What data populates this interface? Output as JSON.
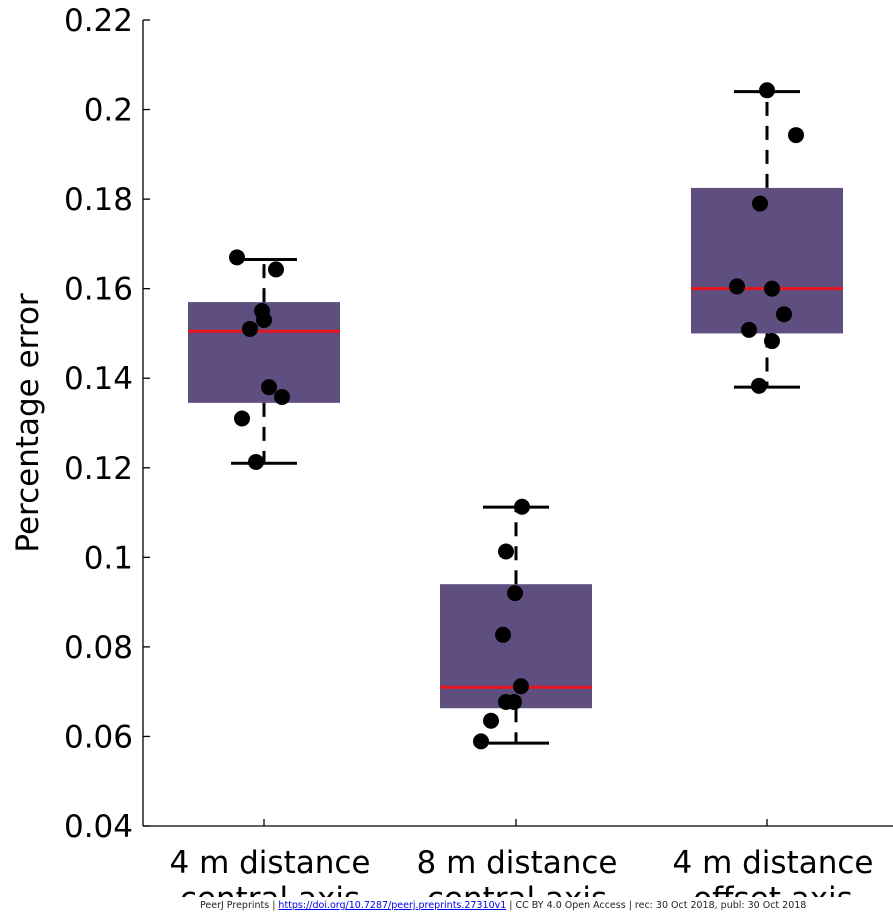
{
  "chart_data": {
    "type": "box",
    "ylabel": "Percentage error",
    "xlabel": "",
    "ylim": [
      0.04,
      0.22
    ],
    "yticks": [
      0.04,
      0.06,
      0.08,
      0.1,
      0.12,
      0.14,
      0.16,
      0.18,
      0.2,
      0.22
    ],
    "ytick_labels": [
      "0.04",
      "0.06",
      "0.08",
      "0.1",
      "0.12",
      "0.14",
      "0.16",
      "0.18",
      "0.2",
      "0.22"
    ],
    "grid": false,
    "colors": {
      "box_fill": "#5f4f80",
      "median": "#e8141c",
      "points": "#000000",
      "whisker": "#000000"
    },
    "groups": [
      {
        "label_lines": [
          "4 m distance",
          "central axis"
        ],
        "whisker_low": 0.121,
        "q1": 0.1345,
        "median": 0.1505,
        "q3": 0.157,
        "whisker_high": 0.1665,
        "points": [
          0.167,
          0.1643,
          0.155,
          0.153,
          0.151,
          0.138,
          0.1358,
          0.131,
          0.1213
        ]
      },
      {
        "label_lines": [
          "8 m distance",
          "central axis"
        ],
        "whisker_low": 0.0585,
        "q1": 0.0663,
        "median": 0.071,
        "q3": 0.094,
        "whisker_high": 0.1112,
        "points": [
          0.1113,
          0.1013,
          0.092,
          0.0827,
          0.0712,
          0.0677,
          0.0677,
          0.0635,
          0.0589
        ]
      },
      {
        "label_lines": [
          "4 m distance",
          "offset axis"
        ],
        "whisker_low": 0.138,
        "q1": 0.15,
        "median": 0.16,
        "q3": 0.1825,
        "whisker_high": 0.204,
        "points": [
          0.2043,
          0.1943,
          0.179,
          0.1605,
          0.16,
          0.1543,
          0.1508,
          0.1483,
          0.1383
        ]
      }
    ]
  },
  "footer": {
    "prefix": "PeerJ Preprints | ",
    "link": "https://doi.org/10.7287/peerj.preprints.27310v1",
    "suffix": " | CC BY 4.0 Open Access | rec: 30 Oct 2018, publ: 30 Oct 2018"
  }
}
